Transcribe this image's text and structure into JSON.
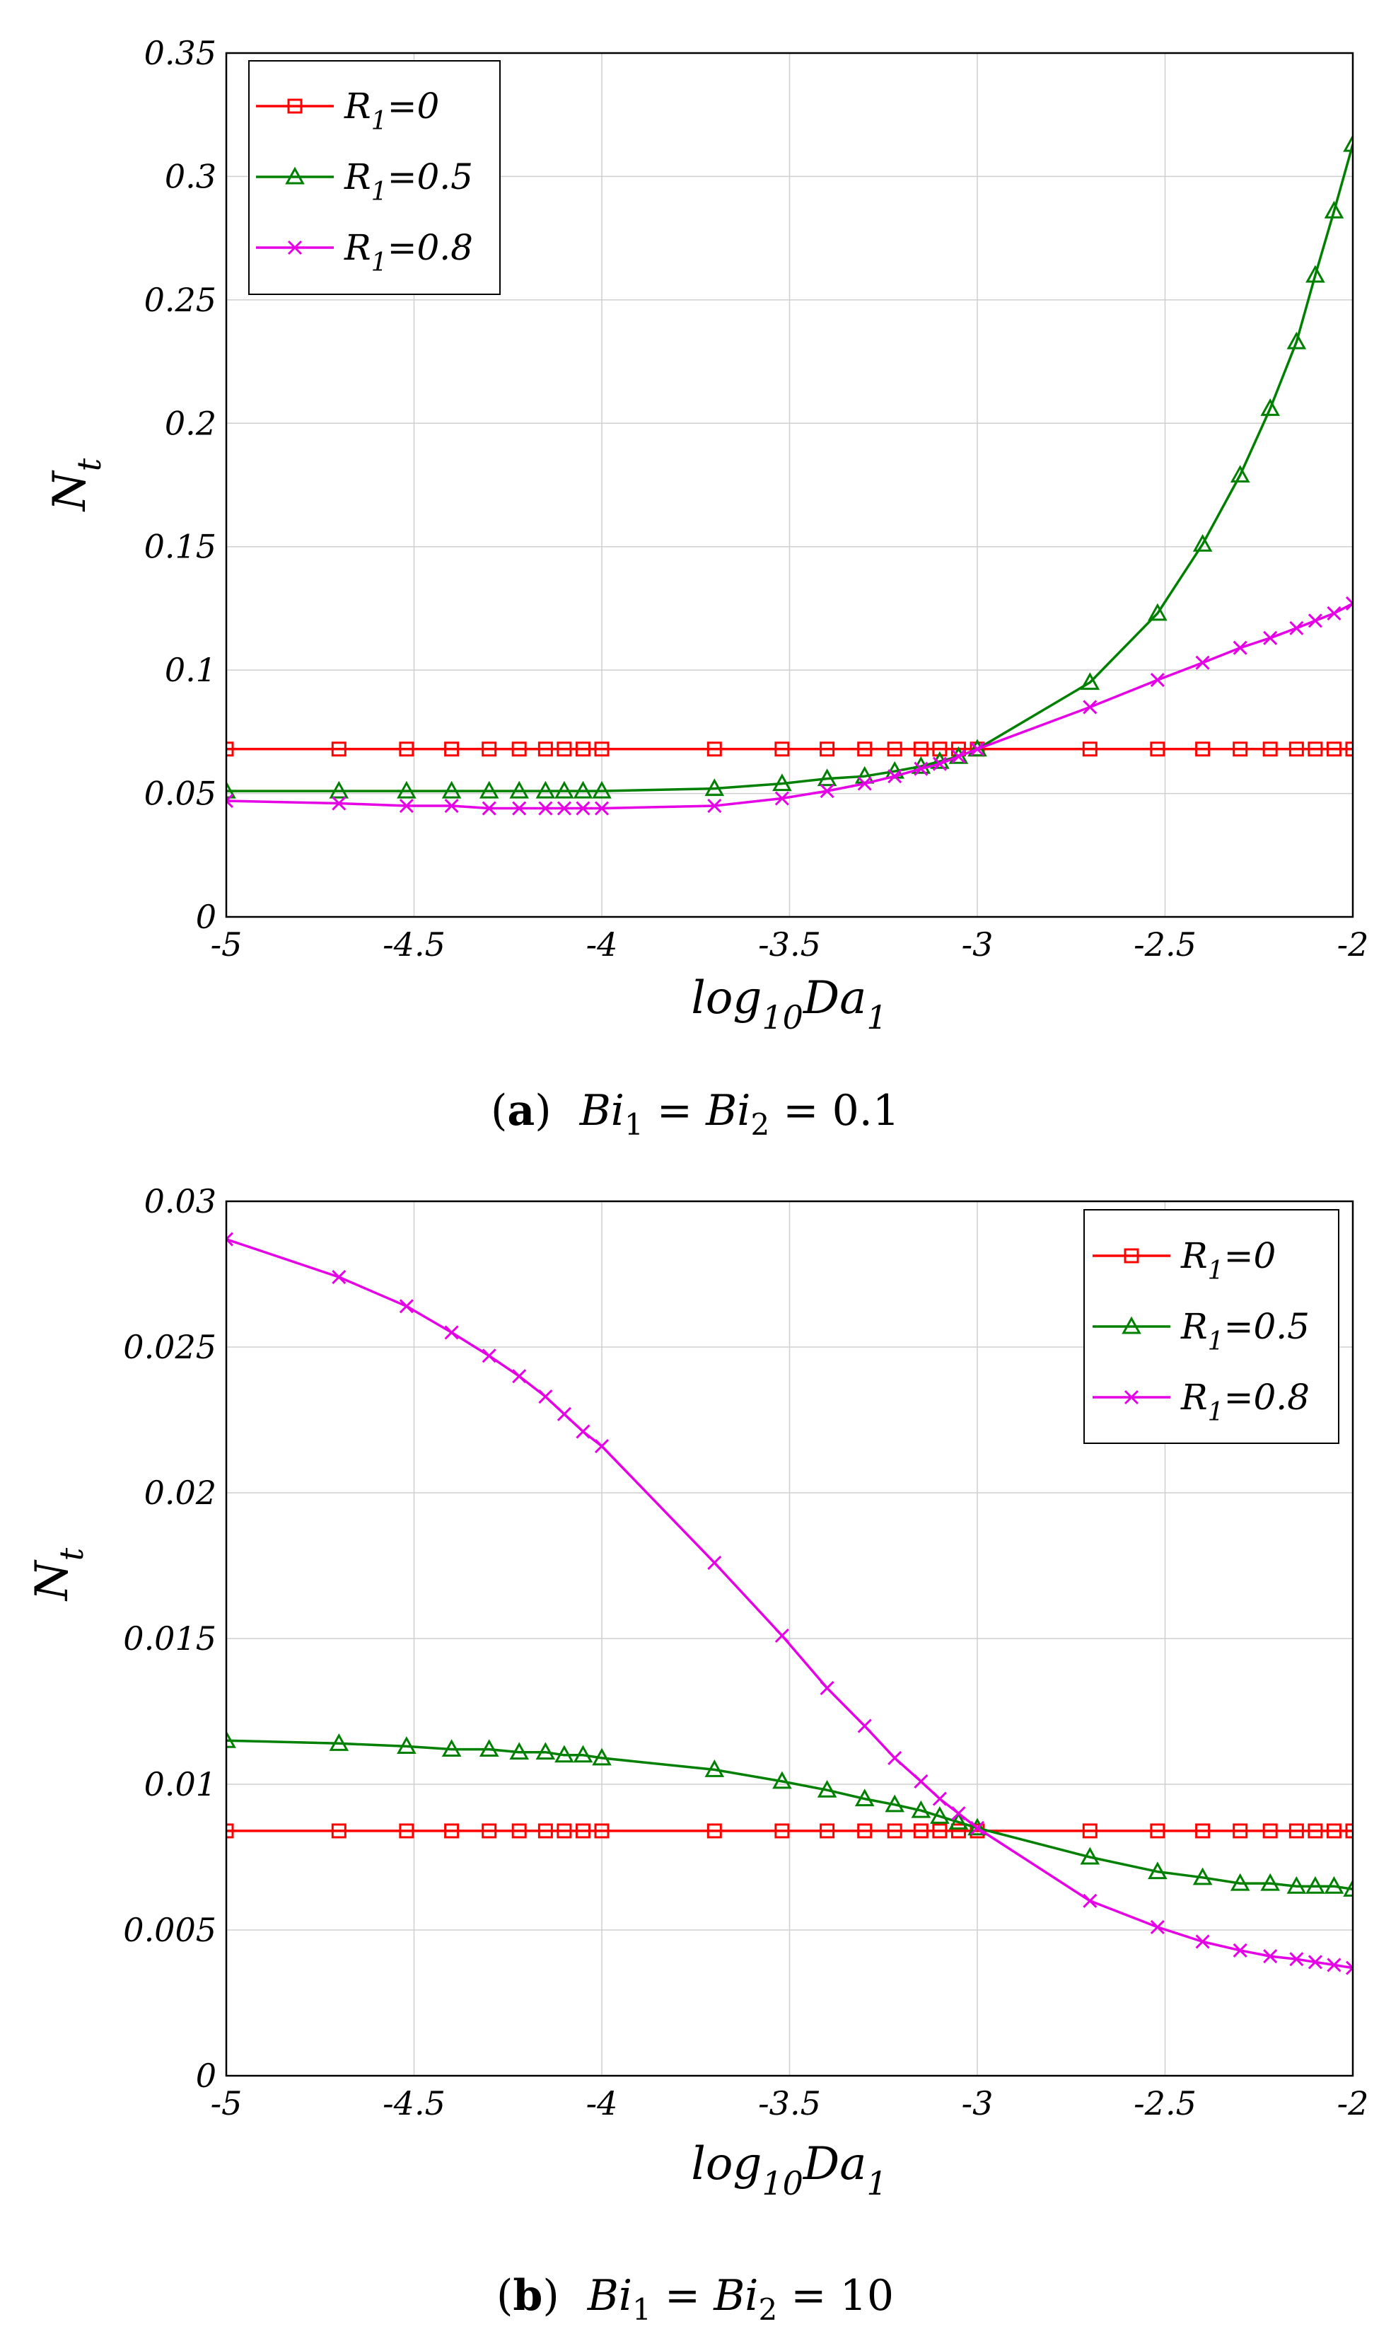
{
  "chart_data": [
    {
      "type": "line",
      "panel": "a",
      "caption_label": "a",
      "caption_text": "Bi1 = Bi2 = 0.1",
      "xlabel": "log10Da1",
      "ylabel": "Nt",
      "xlim": [
        -5,
        -2
      ],
      "ylim": [
        0,
        0.35
      ],
      "xticks": [
        "-5",
        "-4.5",
        "-4",
        "-3.5",
        "-3",
        "-2.5",
        "-2"
      ],
      "yticks": [
        "0",
        "0.05",
        "0.1",
        "0.15",
        "0.2",
        "0.25",
        "0.3",
        "0.35"
      ],
      "grid": true,
      "legend_position": "top-left",
      "x": [
        -5,
        -4.7,
        -4.52,
        -4.4,
        -4.3,
        -4.22,
        -4.15,
        -4.1,
        -4.05,
        -4,
        -3.7,
        -3.52,
        -3.4,
        -3.3,
        -3.22,
        -3.15,
        -3.1,
        -3.05,
        -3,
        -2.7,
        -2.52,
        -2.4,
        -2.3,
        -2.22,
        -2.15,
        -2.1,
        -2.05,
        -2
      ],
      "series": [
        {
          "name": "R1=0",
          "color": "#ff0000",
          "marker": "square",
          "values": [
            0.068,
            0.068,
            0.068,
            0.068,
            0.068,
            0.068,
            0.068,
            0.068,
            0.068,
            0.068,
            0.068,
            0.068,
            0.068,
            0.068,
            0.068,
            0.068,
            0.068,
            0.068,
            0.068,
            0.068,
            0.068,
            0.068,
            0.068,
            0.068,
            0.068,
            0.068,
            0.068,
            0.068
          ]
        },
        {
          "name": "R1=0.5",
          "color": "#008000",
          "marker": "triangle",
          "values": [
            0.051,
            0.051,
            0.051,
            0.051,
            0.051,
            0.051,
            0.051,
            0.051,
            0.051,
            0.051,
            0.052,
            0.054,
            0.056,
            0.057,
            0.059,
            0.061,
            0.063,
            0.065,
            0.068,
            0.095,
            0.123,
            0.151,
            0.179,
            0.206,
            0.233,
            0.26,
            0.286,
            0.313
          ]
        },
        {
          "name": "R1=0.8",
          "color": "#e600e6",
          "marker": "x",
          "values": [
            0.047,
            0.046,
            0.045,
            0.045,
            0.044,
            0.044,
            0.044,
            0.044,
            0.044,
            0.044,
            0.045,
            0.048,
            0.051,
            0.054,
            0.057,
            0.06,
            0.062,
            0.065,
            0.068,
            0.085,
            0.096,
            0.103,
            0.109,
            0.113,
            0.117,
            0.12,
            0.123,
            0.127
          ]
        }
      ]
    },
    {
      "type": "line",
      "panel": "b",
      "caption_label": "b",
      "caption_text": "Bi1 = Bi2 = 10",
      "xlabel": "log10Da1",
      "ylabel": "Nt",
      "xlim": [
        -5,
        -2
      ],
      "ylim": [
        0,
        0.03
      ],
      "xticks": [
        "-5",
        "-4.5",
        "-4",
        "-3.5",
        "-3",
        "-2.5",
        "-2"
      ],
      "yticks": [
        "0",
        "0.005",
        "0.01",
        "0.015",
        "0.02",
        "0.025",
        "0.03"
      ],
      "grid": true,
      "legend_position": "top-right",
      "x": [
        -5,
        -4.7,
        -4.52,
        -4.4,
        -4.3,
        -4.22,
        -4.15,
        -4.1,
        -4.05,
        -4,
        -3.7,
        -3.52,
        -3.4,
        -3.3,
        -3.22,
        -3.15,
        -3.1,
        -3.05,
        -3,
        -2.7,
        -2.52,
        -2.4,
        -2.3,
        -2.22,
        -2.15,
        -2.1,
        -2.05,
        -2
      ],
      "series": [
        {
          "name": "R1=0",
          "color": "#ff0000",
          "marker": "square",
          "values": [
            0.0084,
            0.0084,
            0.0084,
            0.0084,
            0.0084,
            0.0084,
            0.0084,
            0.0084,
            0.0084,
            0.0084,
            0.0084,
            0.0084,
            0.0084,
            0.0084,
            0.0084,
            0.0084,
            0.0084,
            0.0084,
            0.0084,
            0.0084,
            0.0084,
            0.0084,
            0.0084,
            0.0084,
            0.0084,
            0.0084,
            0.0084,
            0.0084
          ]
        },
        {
          "name": "R1=0.5",
          "color": "#008000",
          "marker": "triangle",
          "values": [
            0.0115,
            0.0114,
            0.0113,
            0.0112,
            0.0112,
            0.0111,
            0.0111,
            0.011,
            0.011,
            0.0109,
            0.0105,
            0.0101,
            0.0098,
            0.0095,
            0.0093,
            0.0091,
            0.0089,
            0.0087,
            0.0085,
            0.0075,
            0.007,
            0.0068,
            0.0066,
            0.0066,
            0.0065,
            0.0065,
            0.0065,
            0.0064
          ]
        },
        {
          "name": "R1=0.8",
          "color": "#e600e6",
          "marker": "x",
          "values": [
            0.0287,
            0.0274,
            0.0264,
            0.0255,
            0.0247,
            0.024,
            0.0233,
            0.0227,
            0.0221,
            0.0216,
            0.0176,
            0.0151,
            0.0133,
            0.012,
            0.0109,
            0.0101,
            0.0095,
            0.009,
            0.0085,
            0.006,
            0.0051,
            0.0046,
            0.0043,
            0.0041,
            0.004,
            0.0039,
            0.0038,
            0.0037
          ]
        }
      ]
    }
  ]
}
